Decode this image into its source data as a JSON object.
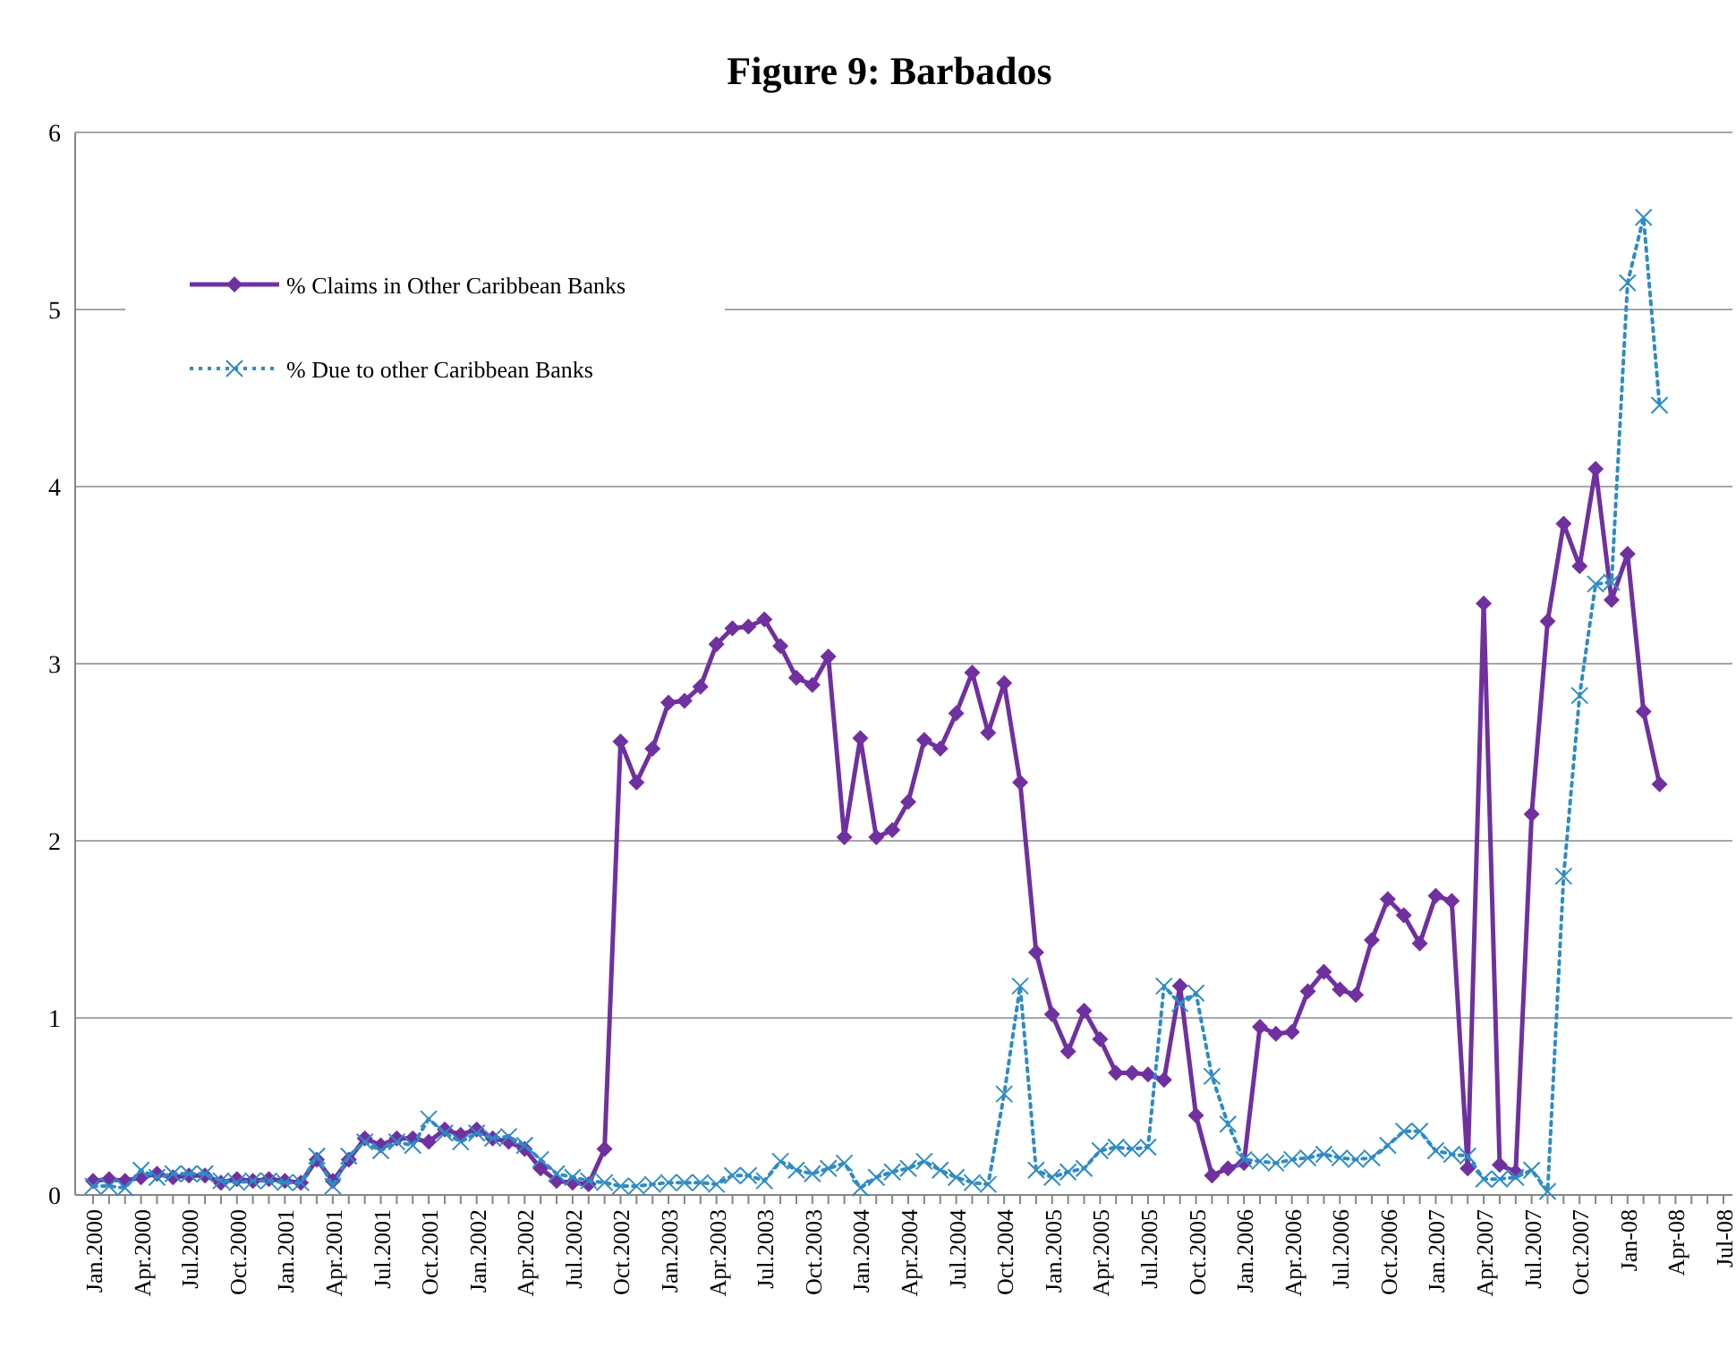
{
  "chart_data": {
    "type": "line",
    "title": "Figure 9: Barbados",
    "categories": [
      "Jan.2000",
      null,
      null,
      "Apr.2000",
      null,
      null,
      "Jul.2000",
      null,
      null,
      "Oct.2000",
      null,
      null,
      "Jan.2001",
      null,
      null,
      "Apr.2001",
      null,
      null,
      "Jul.2001",
      null,
      null,
      "Oct.2001",
      null,
      null,
      "Jan.2002",
      null,
      null,
      "Apr.2002",
      null,
      null,
      "Jul.2002",
      null,
      null,
      "Oct.2002",
      null,
      null,
      "Jan.2003",
      null,
      null,
      "Apr.2003",
      null,
      null,
      "Jul.2003",
      null,
      null,
      "Oct.2003",
      null,
      null,
      "Jan.2004",
      null,
      null,
      "Apr.2004",
      null,
      null,
      "Jul.2004",
      null,
      null,
      "Oct.2004",
      null,
      null,
      "Jan.2005",
      null,
      null,
      "Apr.2005",
      null,
      null,
      "Jul.2005",
      null,
      null,
      "Oct.2005",
      null,
      null,
      "Jan.2006",
      null,
      null,
      "Apr.2006",
      null,
      null,
      "Jul.2006",
      null,
      null,
      "Oct.2006",
      null,
      null,
      "Jan.2007",
      null,
      null,
      "Apr.2007",
      null,
      null,
      "Jul.2007",
      null,
      null,
      "Oct.2007",
      null,
      null,
      "Jan-08",
      null,
      null,
      "Apr-08",
      null,
      null,
      "Jul-08"
    ],
    "series": [
      {
        "name": "% Claims in Other Caribbean Banks",
        "color": "#7030a0",
        "marker": "diamond",
        "line_style": "solid",
        "values": [
          0.08,
          0.09,
          0.08,
          0.1,
          0.12,
          0.1,
          0.11,
          0.11,
          0.07,
          0.09,
          0.08,
          0.09,
          0.08,
          0.07,
          0.2,
          0.08,
          0.2,
          0.32,
          0.28,
          0.32,
          0.32,
          0.3,
          0.37,
          0.34,
          0.37,
          0.32,
          0.3,
          0.26,
          0.15,
          0.08,
          0.07,
          0.06,
          0.26,
          2.56,
          2.33,
          2.52,
          2.78,
          2.79,
          2.87,
          3.11,
          3.2,
          3.21,
          3.25,
          3.1,
          2.92,
          2.88,
          3.04,
          2.02,
          2.58,
          2.02,
          2.06,
          2.22,
          2.57,
          2.52,
          2.72,
          2.95,
          2.61,
          2.89,
          2.33,
          1.37,
          1.02,
          0.81,
          1.04,
          0.88,
          0.69,
          0.69,
          0.68,
          0.65,
          1.18,
          0.45,
          0.11,
          0.15,
          0.18,
          0.95,
          0.91,
          0.92,
          1.15,
          1.26,
          1.16,
          1.13,
          1.44,
          1.67,
          1.58,
          1.42,
          1.69,
          1.66,
          0.15,
          3.34,
          0.17,
          0.13,
          2.15,
          3.24,
          3.79,
          3.55,
          4.1,
          3.36,
          3.62,
          2.73,
          2.32,
          null,
          null,
          null,
          null
        ]
      },
      {
        "name": "% Due to other Caribbean Banks",
        "color": "#2e8cc4",
        "marker": "cross",
        "line_style": "dotted",
        "values": [
          0.05,
          0.05,
          0.04,
          0.14,
          0.1,
          0.12,
          0.12,
          0.12,
          0.08,
          0.07,
          0.08,
          0.08,
          0.07,
          0.07,
          0.22,
          0.05,
          0.22,
          0.3,
          0.25,
          0.3,
          0.28,
          0.43,
          0.35,
          0.3,
          0.35,
          0.32,
          0.33,
          0.28,
          0.2,
          0.12,
          0.1,
          0.08,
          0.07,
          0.05,
          0.05,
          0.06,
          0.07,
          0.07,
          0.07,
          0.06,
          0.11,
          0.11,
          0.08,
          0.19,
          0.14,
          0.12,
          0.15,
          0.18,
          0.04,
          0.1,
          0.13,
          0.15,
          0.19,
          0.14,
          0.1,
          0.07,
          0.06,
          0.57,
          1.18,
          0.14,
          0.1,
          0.13,
          0.15,
          0.25,
          0.27,
          0.26,
          0.27,
          1.18,
          1.08,
          1.14,
          0.67,
          0.4,
          0.2,
          0.19,
          0.18,
          0.2,
          0.21,
          0.23,
          0.21,
          0.2,
          0.21,
          0.28,
          0.36,
          0.36,
          0.25,
          0.23,
          0.22,
          0.09,
          0.09,
          0.1,
          0.14,
          0.02,
          1.8,
          2.82,
          3.45,
          3.46,
          5.15,
          5.52,
          4.46,
          null,
          null,
          null,
          null
        ]
      }
    ],
    "ylim": [
      0,
      6
    ],
    "yticks": [
      0,
      1,
      2,
      3,
      4,
      5,
      6
    ],
    "grid": "y",
    "legend": "top left"
  }
}
